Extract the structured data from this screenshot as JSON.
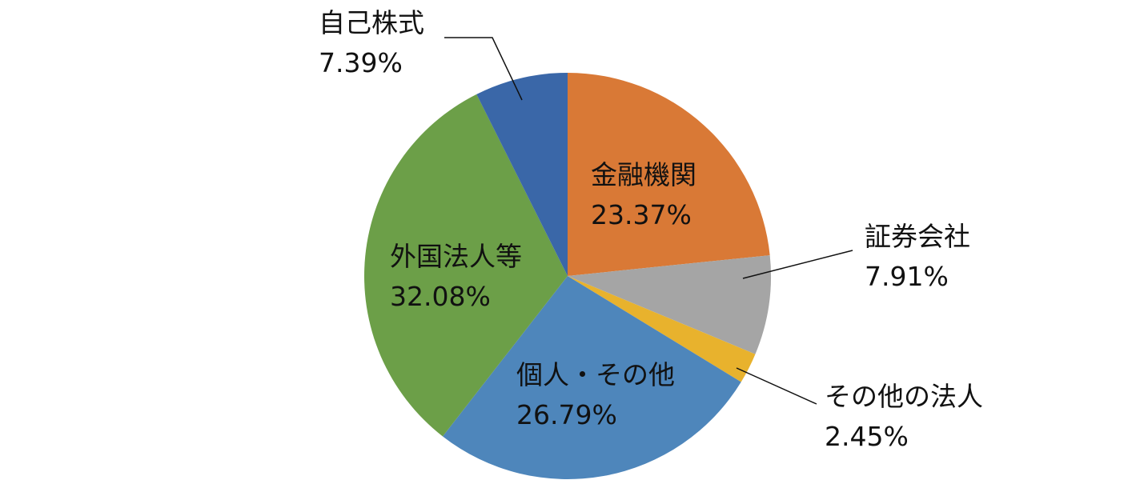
{
  "chart_data": {
    "type": "pie",
    "categories": [
      "金融機関",
      "証券会社",
      "その他の法人",
      "個人・その他",
      "外国法人等",
      "自己株式"
    ],
    "values": [
      23.37,
      7.91,
      2.45,
      26.79,
      32.08,
      7.39
    ],
    "value_labels": [
      "23.37%",
      "7.91%",
      "2.45%",
      "26.79%",
      "32.08%",
      "7.39%"
    ],
    "colors": [
      "#d97936",
      "#a5a5a5",
      "#e8b22d",
      "#4e86bb",
      "#6c9f48",
      "#3a67a8"
    ]
  }
}
